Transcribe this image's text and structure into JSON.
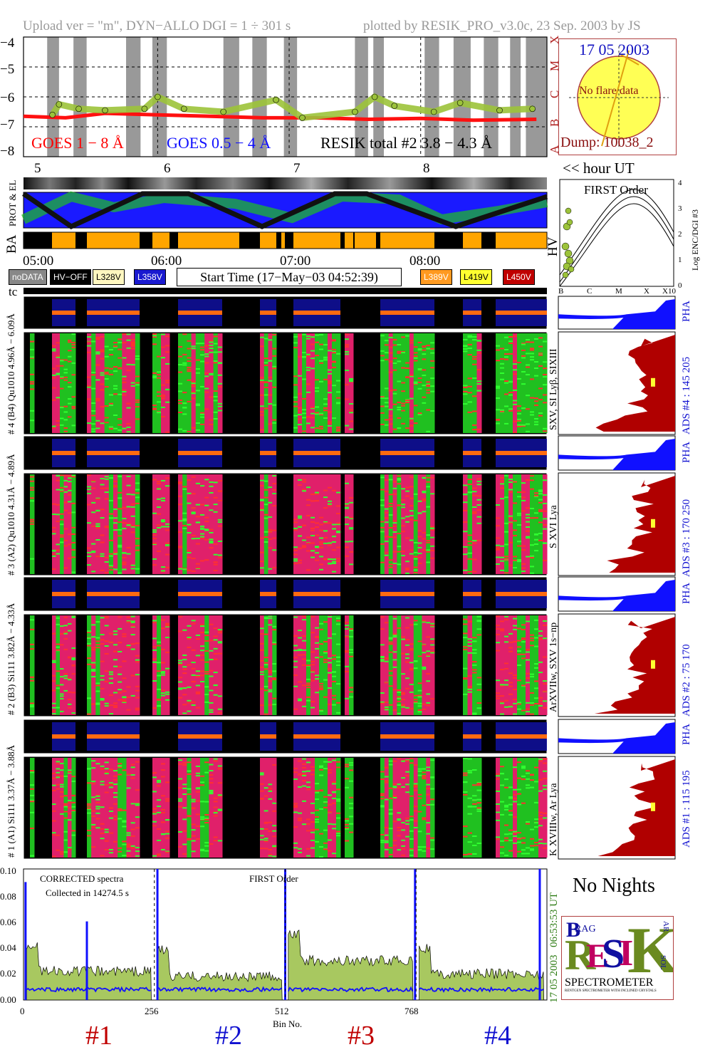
{
  "header": {
    "left": "Upload ver = \"m\", DYN−ALLO DGI =   1 ÷ 301 s",
    "right": "plotted by RESIK_PRO_v3.0c, 23 Sep. 2003 by JS"
  },
  "goes_panel": {
    "y_ticks": [
      "−4",
      "−5",
      "−6",
      "−7",
      "−8"
    ],
    "class_letters": [
      "X",
      "M",
      "C",
      "B",
      "A"
    ],
    "legend_goes18": "GOES 1 − 8 Å",
    "legend_goes054": "GOES 0.5 − 4 Å",
    "legend_resik": "RESIK total #2  3.8 − 4.3 Å"
  },
  "sun_panel": {
    "date": "17 05 2003",
    "flare_text": "No flare data",
    "dump": "Dump: 10038_2"
  },
  "hour_axis": {
    "ticks": [
      "5",
      "6",
      "7",
      "8"
    ],
    "unit_label": "<< hour UT"
  },
  "strip_labels": {
    "prot_el": "PROT & EL",
    "ba": "BA",
    "hv": "HV",
    "tc": "tc"
  },
  "time_axis": {
    "ticks": [
      "05:00",
      "06:00",
      "07:00",
      "08:00"
    ]
  },
  "legend": {
    "nodata": "noDATA",
    "hvoff": "HV−OFF",
    "v1": "L328V",
    "v2": "L358V",
    "start_time": "Start Time (17−May−03 04:52:39)",
    "v3": "L389V",
    "v4": "L419V",
    "v5": "L450V",
    "colors": {
      "v1": "#fff7c0",
      "v2": "#1a1ad0",
      "v3": "#ff9a20",
      "v4": "#ffff30",
      "v5": "#c00000"
    }
  },
  "first_order_panel": {
    "title": "FIRST Order",
    "y_ticks": [
      "0",
      "1",
      "2",
      "3",
      "4"
    ],
    "y_label": "Log ENC/DGI #3",
    "x_ticks": [
      "B",
      "C",
      "M",
      "X",
      "X10"
    ]
  },
  "channels": [
    {
      "left_label": "# 4 (B4) Qu1010 4.96Å − 6.09Å",
      "right_label": "SXV, SI Lyβ, SIXIII",
      "ads_label": "ADS #4 :  145 205"
    },
    {
      "left_label": "# 3 (A2) Qu1010  4.31Å − 4.89Å",
      "right_label": "S XVI Lya",
      "ads_label": "ADS #3 :  170 250"
    },
    {
      "left_label": "# 2 (B3) Si111  3.82Å − 4.33Å",
      "right_label": "ArXVIIw, SXV 1s−np",
      "ads_label": "ADS #2 :   75 170"
    },
    {
      "left_label": "# 1 (A1) Si111  3.37Å − 3.88Å",
      "right_label": "K XVIIIw, Ar Lya",
      "ads_label": "ADS #1 :  115 195"
    }
  ],
  "pha_label": "PHA",
  "spectrum": {
    "text1": "CORRECTED spectra",
    "text2": "Collected in 14274.5 s",
    "text3": "FIRST Order",
    "y_ticks": [
      "0.00",
      "0.02",
      "0.04",
      "0.06",
      "0.08",
      "0.10"
    ],
    "x_ticks": [
      "0",
      "256",
      "512",
      "768"
    ],
    "x_label": "Bin No.",
    "right_time": "06:53:53 UT",
    "right_date": "17 05 2003",
    "channel_labels": [
      "#1",
      "#2",
      "#3",
      "#4"
    ]
  },
  "no_nights": "No Nights",
  "logo": {
    "spectrometer": "SPECTROMETER",
    "letters": [
      "R",
      "E",
      "S",
      "I",
      "K"
    ],
    "small": [
      "B",
      "RAG",
      "SOL",
      "AR"
    ],
    "fine_print": "RENTGEN SPECTROMETER WITH INCLINED CRYSTALS"
  },
  "chart_data": {
    "type": "line",
    "title": "",
    "series": [
      {
        "name": "GOES 1 − 8 Å",
        "x_hours": [
          4.88,
          5.2,
          5.5,
          5.9,
          6.3,
          6.7,
          7.1,
          7.5,
          7.9,
          8.3,
          8.78
        ],
        "log_flux": [
          -6.65,
          -6.7,
          -6.55,
          -6.6,
          -6.65,
          -6.7,
          -6.7,
          -6.75,
          -6.72,
          -6.78,
          -6.75
        ]
      },
      {
        "name": "RESIK total #2  3.8 − 4.3 Å",
        "x_hours": [
          5.1,
          5.15,
          5.3,
          5.5,
          5.8,
          5.9,
          6.1,
          6.4,
          6.8,
          7.0,
          7.4,
          7.55,
          7.7,
          8.0,
          8.2,
          8.5,
          8.75
        ],
        "log_flux": [
          -6.6,
          -6.25,
          -6.4,
          -6.45,
          -6.4,
          -6.0,
          -6.4,
          -6.5,
          -6.1,
          -6.7,
          -6.5,
          -6.0,
          -6.3,
          -6.5,
          -6.2,
          -6.45,
          -6.4
        ]
      }
    ],
    "ylim": [
      -8,
      -4
    ],
    "xlim": [
      4.88,
      8.86
    ]
  }
}
